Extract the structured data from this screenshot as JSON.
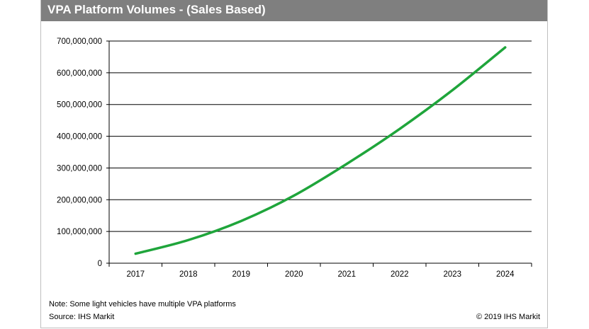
{
  "title": "VPA Platform Volumes - (Sales Based)",
  "note": "Note: Some light vehicles have multiple VPA platforms",
  "source": "Source: IHS Markit",
  "copyright": "© 2019 IHS Markit",
  "colors": {
    "title_bar": "#7f7f7f",
    "title_text": "#ffffff",
    "series_line": "#1fa53b",
    "gridline": "#000000"
  },
  "chart_data": {
    "type": "line",
    "title": "VPA Platform Volumes - (Sales Based)",
    "xlabel": "",
    "ylabel": "",
    "categories": [
      "2017",
      "2018",
      "2019",
      "2020",
      "2021",
      "2022",
      "2023",
      "2024"
    ],
    "series": [
      {
        "values": [
          30000000,
          73000000,
          133000000,
          213000000,
          313000000,
          423000000,
          545000000,
          680000000
        ]
      }
    ],
    "ylim": [
      0,
      700000000
    ],
    "yticks": [
      0,
      100000000,
      200000000,
      300000000,
      400000000,
      500000000,
      600000000,
      700000000
    ],
    "ytick_labels": [
      "0",
      "100,000,000",
      "200,000,000",
      "300,000,000",
      "400,000,000",
      "500,000,000",
      "600,000,000",
      "700,000,000"
    ],
    "grid": true,
    "legend": "none"
  }
}
